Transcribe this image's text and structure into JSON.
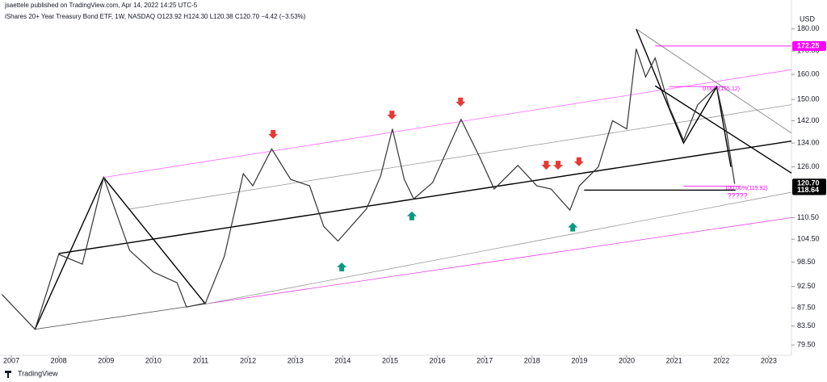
{
  "header": {
    "publisher": "jsaettele published on TradingView.com, Apr 14, 2022 14:25 UTC-5",
    "symbol": "iShares 20+ Year Treasury Bond ETF, 1W, NASDAQ  O123.92 H124.30 L120.38 C120.70 −4.42 (−3.53%)",
    "currency": "USD"
  },
  "footer": {
    "brand": "TradingView"
  },
  "chart_data": {
    "type": "line",
    "log_scale": true,
    "color": "#333333",
    "x": [
      2006.8,
      2007.5,
      2008.0,
      2008.5,
      2008.95,
      2009.5,
      2010.0,
      2010.5,
      2010.7,
      2011.1,
      2011.5,
      2011.9,
      2012.1,
      2012.5,
      2012.9,
      2013.3,
      2013.6,
      2013.9,
      2014.5,
      2014.8,
      2015.05,
      2015.3,
      2015.5,
      2015.9,
      2016.5,
      2016.9,
      2017.2,
      2017.7,
      2018.1,
      2018.4,
      2018.8,
      2019.0,
      2019.4,
      2019.7,
      2020.0,
      2020.2,
      2020.4,
      2020.6,
      2020.9,
      2021.2,
      2021.5,
      2021.9,
      2022.1,
      2022.28
    ],
    "values": [
      90.6,
      82.8,
      100.5,
      98,
      122.6,
      101.5,
      96,
      93.4,
      87.7,
      88.6,
      100,
      123.8,
      120,
      132,
      122,
      120,
      108,
      104,
      113,
      123,
      139,
      122,
      116,
      121,
      142.5,
      129,
      119,
      126.5,
      120,
      119,
      112.7,
      120,
      126,
      142,
      139,
      171,
      159,
      167,
      147,
      135,
      148,
      155,
      139,
      120.6
    ],
    "xlim": [
      2006.76,
      2023.48
    ],
    "xticks": [
      2007,
      2008,
      2009,
      2010,
      2011,
      2012,
      2013,
      2014,
      2015,
      2016,
      2017,
      2018,
      2019,
      2020,
      2021,
      2022,
      2023
    ],
    "ylim": [
      77.4,
      194
    ],
    "yticks": [
      {
        "value": 79.5,
        "label": "79.50"
      },
      {
        "value": 83.5,
        "label": "83.50"
      },
      {
        "value": 87.5,
        "label": "87.50"
      },
      {
        "value": 92.5,
        "label": "92.50"
      },
      {
        "value": 98.5,
        "label": "98.50"
      },
      {
        "value": 104.5,
        "label": "104.50"
      },
      {
        "value": 110.5,
        "label": "110.50"
      },
      {
        "value": 126,
        "label": "126.00"
      },
      {
        "value": 134,
        "label": "134.00"
      },
      {
        "value": 142,
        "label": "142.00"
      },
      {
        "value": 150,
        "label": "150.00"
      },
      {
        "value": 160,
        "label": "160.00"
      },
      {
        "value": 170,
        "label": "170.00"
      },
      {
        "value": 180,
        "label": "180.00"
      }
    ],
    "price_labels": [
      {
        "value": 172.25,
        "label": "172.25",
        "color": "#ff00ff"
      },
      {
        "value": 120.7,
        "label": "120.70",
        "color": "#000000"
      },
      {
        "value": 118.64,
        "label": "118.64",
        "color": "#000000"
      }
    ],
    "lines": [
      {
        "color": "#555555",
        "x": [
          2007.5,
          2011.1
        ],
        "y": [
          82.8,
          88.4
        ]
      },
      {
        "color": "#e040e0",
        "x": [
          2011.1,
          2023.48
        ],
        "y": [
          88.4,
          110.5
        ]
      },
      {
        "color": "#ff66ff",
        "x": [
          2008.95,
          2023.48
        ],
        "y": [
          122.6,
          162
        ]
      },
      {
        "color": "#999999",
        "x": [
          2009.5,
          2023.48
        ],
        "y": [
          113,
          148
        ]
      },
      {
        "color": "#999999",
        "x": [
          2011.1,
          2023.48
        ],
        "y": [
          88.4,
          118
        ]
      },
      {
        "color": "#000000",
        "x": [
          2008.0,
          2023.48
        ],
        "y": [
          100.7,
          134.7
        ]
      },
      {
        "color": "#000000",
        "x": [
          2007.5,
          2008.95,
          2011.1
        ],
        "y": [
          82.8,
          122.6,
          88.4
        ]
      },
      {
        "color": "#000000",
        "x": [
          2020.2,
          2021.2,
          2021.9,
          2022.2
        ],
        "y": [
          180,
          134,
          155,
          126
        ]
      },
      {
        "color": "#777777",
        "x": [
          2020.2,
          2023.48
        ],
        "y": [
          180,
          137.5
        ]
      },
      {
        "color": "#000000",
        "x": [
          2020.6,
          2023.48
        ],
        "y": [
          155.4,
          124
        ]
      },
      {
        "color": "#ff00ff",
        "x": [
          2020.6,
          2023.48
        ],
        "y": [
          172.25,
          172.25
        ]
      },
      {
        "color": "#ff00ff",
        "x": [
          2020.9,
          2022.1
        ],
        "y": [
          155.12,
          155.12
        ]
      },
      {
        "color": "#ff00ff",
        "x": [
          2021.2,
          2022.4
        ],
        "y": [
          119.92,
          119.92
        ]
      },
      {
        "color": "#000000",
        "x": [
          2019.1,
          2022.3
        ],
        "y": [
          118.64,
          118.64
        ]
      }
    ],
    "down_arrows": {
      "color": "#e53935",
      "x": [
        2012.53,
        2015.04,
        2016.49,
        2018.3,
        2018.55,
        2018.99
      ],
      "y": [
        135.5,
        142.4,
        147.3,
        125.1,
        125.1,
        126.2
      ]
    },
    "up_arrows": {
      "color": "#089981",
      "x": [
        2015.46,
        2013.98,
        2018.86
      ],
      "y": [
        112.3,
        98.4,
        109.1
      ]
    },
    "annotations": [
      "0.00%(155.12)",
      "100.00%(119.92)",
      "?????"
    ]
  }
}
